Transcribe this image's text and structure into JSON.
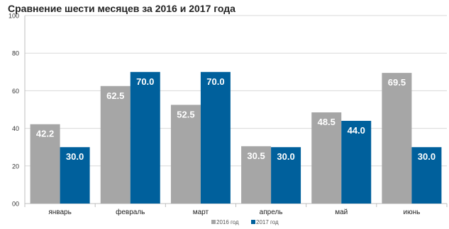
{
  "chart_data": {
    "type": "bar",
    "title": "Сравнение шести месяцев за 2016 и 2017 года",
    "xlabel": "",
    "ylabel": "",
    "categories": [
      "январь",
      "февраль",
      "март",
      "апрель",
      "май",
      "июнь"
    ],
    "series": [
      {
        "name": "2016 год",
        "color": "#a6a6a6",
        "values": [
          42.2,
          62.5,
          52.5,
          30.5,
          48.5,
          69.5
        ]
      },
      {
        "name": "2017 год",
        "color": "#00609c",
        "values": [
          30.0,
          70.0,
          70.0,
          30.0,
          44.0,
          30.0
        ]
      }
    ],
    "ylim": [
      0,
      100
    ],
    "yticks": [
      0,
      20,
      40,
      60,
      80,
      100
    ],
    "ytick_labels": [
      "00",
      "20",
      "40",
      "60",
      "80",
      "100"
    ],
    "value_labels": [
      [
        "42.2",
        "62.5",
        "52.5",
        "30.5",
        "48.5",
        "69.5"
      ],
      [
        "30.0",
        "70.0",
        "70.0",
        "30.0",
        "44.0",
        "30.0"
      ]
    ],
    "grid": true,
    "legend_position": "bottom-center"
  }
}
